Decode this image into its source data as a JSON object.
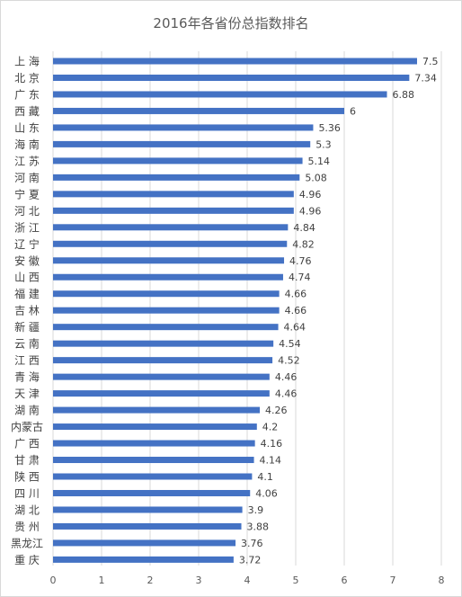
{
  "chart_data": {
    "type": "bar",
    "orientation": "horizontal",
    "title": "2016年各省份总指数排名",
    "categories": [
      "上 海",
      "北 京",
      "广 东",
      "西 藏",
      "山 东",
      "海 南",
      "江 苏",
      "河 南",
      "宁 夏",
      "河 北",
      "浙 江",
      "辽 宁",
      "安 徽",
      "山 西",
      "福 建",
      "吉 林",
      "新 疆",
      "云 南",
      "江 西",
      "青 海",
      "天 津",
      "湖 南",
      "内蒙古",
      "广 西",
      "甘 肃",
      "陕 西",
      "四 川",
      "湖 北",
      "贵 州",
      "黑龙江",
      "重 庆"
    ],
    "values": [
      7.5,
      7.34,
      6.88,
      6,
      5.36,
      5.3,
      5.14,
      5.08,
      4.96,
      4.96,
      4.84,
      4.82,
      4.76,
      4.74,
      4.66,
      4.66,
      4.64,
      4.54,
      4.52,
      4.46,
      4.46,
      4.26,
      4.2,
      4.16,
      4.14,
      4.1,
      4.06,
      3.9,
      3.88,
      3.76,
      3.72
    ],
    "xlim": [
      0,
      8
    ],
    "xticks": [
      0,
      1,
      2,
      3,
      4,
      5,
      6,
      7,
      8
    ],
    "grid": true,
    "legend": "none",
    "bar_color": "#4472c4",
    "grid_color": "#d9d9d9",
    "xlabel": "",
    "ylabel": ""
  }
}
